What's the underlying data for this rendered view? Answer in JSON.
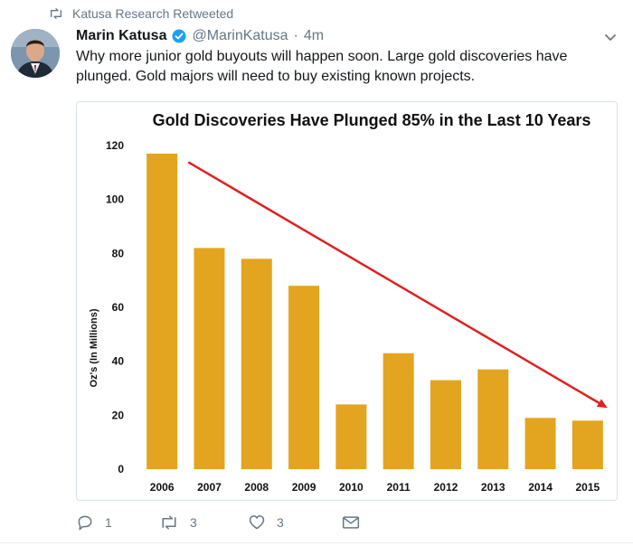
{
  "retweet": {
    "label": "Katusa Research Retweeted"
  },
  "tweet": {
    "author_name": "Marin Katusa",
    "handle": "@MarinKatusa",
    "separator": "·",
    "time": "4m",
    "text": "Why more junior gold buyouts will happen soon. Large gold discoveries have plunged. Gold majors will need to buy existing known projects."
  },
  "actions": {
    "reply_count": "1",
    "retweet_count": "3",
    "like_count": "3"
  },
  "colors": {
    "bar": "#e3a41f",
    "trend_arrow": "#e02020",
    "verified": "#1da1f2"
  },
  "chart_data": {
    "type": "bar",
    "title": "Gold Discoveries Have Plunged 85% in the Last 10 Years",
    "ylabel": "Oz's (In Millions)",
    "xlabel": "",
    "categories": [
      "2006",
      "2007",
      "2008",
      "2009",
      "2010",
      "2011",
      "2012",
      "2013",
      "2014",
      "2015"
    ],
    "values": [
      117,
      82,
      78,
      68,
      24,
      43,
      33,
      37,
      19,
      18
    ],
    "ylim": [
      0,
      120
    ],
    "yticks": [
      0,
      20,
      40,
      60,
      80,
      100,
      120
    ],
    "grid": false,
    "legend": "none",
    "annotations": [
      "downward trend arrow from 2006 to 2015"
    ]
  }
}
